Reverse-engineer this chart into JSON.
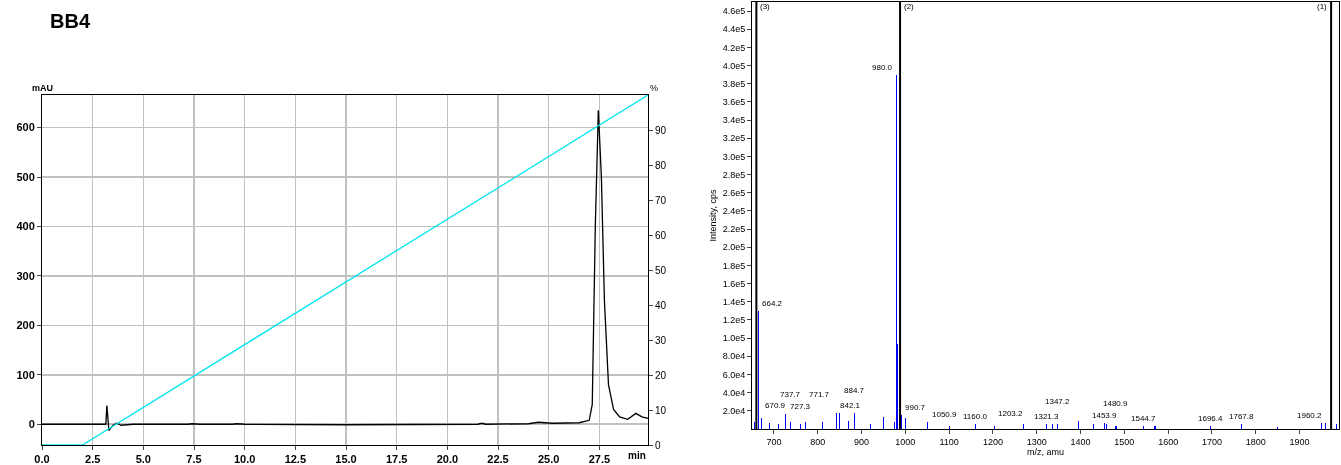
{
  "chart_data": [
    {
      "type": "line",
      "title": "BB4",
      "xlabel": "min",
      "ylabel": "mAU",
      "y2label": "%",
      "xlim": [
        0,
        29.9
      ],
      "ylim": [
        -42,
        666
      ],
      "y2lim": [
        0,
        100
      ],
      "xticks": [
        {
          "value": 0,
          "label": "0.0"
        },
        {
          "value": 2.5,
          "label": "2.5"
        },
        {
          "value": 5,
          "label": "5.0"
        },
        {
          "value": 7.5,
          "label": "7.5"
        },
        {
          "value": 10,
          "label": "10.0"
        },
        {
          "value": 12.5,
          "label": "12.5"
        },
        {
          "value": 15,
          "label": "15.0"
        },
        {
          "value": 17.5,
          "label": "17.5"
        },
        {
          "value": 20,
          "label": "20.0"
        },
        {
          "value": 22.5,
          "label": "22.5"
        },
        {
          "value": 25,
          "label": "25.0"
        },
        {
          "value": 27.5,
          "label": "27.5"
        }
      ],
      "yticks": [
        0,
        100,
        200,
        300,
        400,
        500,
        600
      ],
      "y2ticks": [
        0,
        10,
        20,
        30,
        40,
        50,
        60,
        70,
        80,
        90
      ],
      "grid": true,
      "marker": "none",
      "line_style": "solid",
      "series": [
        {
          "color": "#000000",
          "x": [
            0,
            3.15,
            3.2,
            3.3,
            3.5,
            3.7,
            3.9,
            4.5,
            7.2,
            7.4,
            7.8,
            9.4,
            9.6,
            10,
            15,
            21.5,
            21.7,
            21.9,
            24,
            24.5,
            24.8,
            25.2,
            26.5,
            27,
            27.15,
            27.3,
            27.45,
            27.6,
            27.75,
            27.95,
            28.2,
            28.5,
            28.9,
            29.3,
            29.6,
            29.9
          ],
          "values": [
            0,
            0,
            38,
            -13,
            -2,
            2,
            -2,
            0,
            0,
            1,
            0,
            0,
            1,
            0,
            -1,
            0,
            2,
            0,
            1,
            4,
            3,
            2,
            3,
            8,
            40,
            400,
            635,
            500,
            250,
            80,
            30,
            15,
            10,
            22,
            15,
            12
          ]
        },
        {
          "color": "#00e5ee",
          "axis": "y2",
          "x": [
            0,
            2,
            29.9
          ],
          "values": [
            0,
            0,
            100
          ]
        }
      ]
    },
    {
      "type": "bar",
      "xlabel": "m/z, amu",
      "ylabel": "Intensity, cps",
      "xlim": [
        650,
        1990
      ],
      "ylim": [
        0,
        470000
      ],
      "xticks": [
        700,
        800,
        900,
        1000,
        1100,
        1200,
        1300,
        1400,
        1500,
        1600,
        1700,
        1800,
        1900
      ],
      "yticks": [
        {
          "value": 20000,
          "label": "2.0e4"
        },
        {
          "value": 40000,
          "label": "4.0e4"
        },
        {
          "value": 60000,
          "label": "6.0e4"
        },
        {
          "value": 80000,
          "label": "8.0e4"
        },
        {
          "value": 100000,
          "label": "1.0e5"
        },
        {
          "value": 120000,
          "label": "1.2e5"
        },
        {
          "value": 140000,
          "label": "1.4e5"
        },
        {
          "value": 160000,
          "label": "1.6e5"
        },
        {
          "value": 180000,
          "label": "1.8e5"
        },
        {
          "value": 200000,
          "label": "2.0e5"
        },
        {
          "value": 220000,
          "label": "2.2e5"
        },
        {
          "value": 240000,
          "label": "2.4e5"
        },
        {
          "value": 260000,
          "label": "2.6e5"
        },
        {
          "value": 280000,
          "label": "2.8e5"
        },
        {
          "value": 300000,
          "label": "3.0e5"
        },
        {
          "value": 320000,
          "label": "3.2e5"
        },
        {
          "value": 340000,
          "label": "3.4e5"
        },
        {
          "value": 360000,
          "label": "3.6e5"
        },
        {
          "value": 380000,
          "label": "3.8e5"
        },
        {
          "value": 400000,
          "label": "4.0e5"
        },
        {
          "value": 420000,
          "label": "4.2e5"
        },
        {
          "value": 440000,
          "label": "4.4e5"
        },
        {
          "value": 460000,
          "label": "4.6e5"
        }
      ],
      "grid": false,
      "series": [
        {
          "color": "#0000ff",
          "x": [
            655,
            664.2,
            670.9,
            690,
            710,
            727.3,
            737.7,
            760,
            771.7,
            810,
            842.1,
            850,
            870,
            884.7,
            920,
            950,
            975,
            980,
            983,
            990.7,
            1000,
            1050.9,
            1100,
            1160,
            1203.2,
            1270,
            1321.3,
            1335,
            1347.2,
            1395,
            1430,
            1453.9,
            1460,
            1480.9,
            1544.7,
            1570,
            1696.4,
            1767.8,
            1850,
            1950,
            1960.2,
            1985
          ],
          "values": [
            8000,
            130000,
            12000,
            7000,
            6000,
            17000,
            8000,
            6000,
            8000,
            8000,
            18000,
            18000,
            9000,
            18000,
            6000,
            13000,
            8000,
            390000,
            94000,
            15000,
            12000,
            8000,
            3000,
            6000,
            3000,
            5000,
            6000,
            6000,
            5000,
            9000,
            5000,
            7000,
            5000,
            3000,
            3000,
            3000,
            3000,
            6000,
            2000,
            7000,
            7000,
            5000
          ]
        },
        {
          "type": "line",
          "color": "#000000",
          "x": [
            660,
            660
          ],
          "values": [
            0,
            470000
          ]
        },
        {
          "type": "line",
          "color": "#000000",
          "x": [
            988,
            988
          ],
          "values": [
            0,
            470000
          ]
        },
        {
          "type": "line",
          "color": "#000000",
          "x": [
            1972,
            1972
          ],
          "values": [
            0,
            470000
          ]
        }
      ],
      "annotations": [
        {
          "text": "(3)",
          "x": 660,
          "y": 470000
        },
        {
          "text": "(2)",
          "x": 988,
          "y": 470000
        },
        {
          "text": "(1)",
          "x": 1972,
          "y": 470000
        },
        {
          "text": "664.2",
          "x": 664.2,
          "y": 130000
        },
        {
          "text": "670.9",
          "x": 670.9,
          "y": 12000
        },
        {
          "text": "727.3",
          "x": 727.3,
          "y": 17000
        },
        {
          "text": "737.7",
          "x": 737.7,
          "y": 8000
        },
        {
          "text": "771.7",
          "x": 771.7,
          "y": 8000
        },
        {
          "text": "842.1",
          "x": 842.1,
          "y": 18000
        },
        {
          "text": "884.7",
          "x": 884.7,
          "y": 18000
        },
        {
          "text": "980.0",
          "x": 980,
          "y": 390000
        },
        {
          "text": "990.7",
          "x": 990.7,
          "y": 15000
        },
        {
          "text": "1050.9",
          "x": 1050.9,
          "y": 8000
        },
        {
          "text": "1160.0",
          "x": 1160,
          "y": 6000
        },
        {
          "text": "1203.2",
          "x": 1203.2,
          "y": 3000
        },
        {
          "text": "1321.3",
          "x": 1321.3,
          "y": 6000
        },
        {
          "text": "1347.2",
          "x": 1347.2,
          "y": 5000
        },
        {
          "text": "1453.9",
          "x": 1453.9,
          "y": 7000
        },
        {
          "text": "1480.9",
          "x": 1480.9,
          "y": 3000
        },
        {
          "text": "1544.7",
          "x": 1544.7,
          "y": 3000
        },
        {
          "text": "1696.4",
          "x": 1696.4,
          "y": 3000
        },
        {
          "text": "1767.8",
          "x": 1767.8,
          "y": 6000
        },
        {
          "text": "1960.2",
          "x": 1960.2,
          "y": 7000
        }
      ]
    }
  ]
}
